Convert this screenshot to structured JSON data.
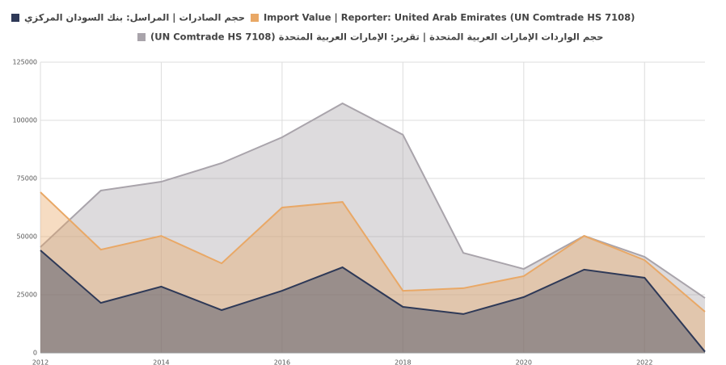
{
  "chart_data": {
    "type": "area",
    "x": [
      2012,
      2013,
      2014,
      2015,
      2016,
      2017,
      2018,
      2019,
      2020,
      2021,
      2022,
      2023
    ],
    "xticks": [
      2012,
      2014,
      2016,
      2018,
      2020,
      2022
    ],
    "series": [
      {
        "name": "(UN Comtrade HS 7108) حجم الواردات الإمارات العربية المتحدة | تقرير: الإمارات العربية المتحدة",
        "color": "#a9a4ab",
        "values": [
          45500,
          69800,
          73600,
          81600,
          92700,
          107300,
          93800,
          43000,
          36100,
          50300,
          41300,
          23600
        ]
      },
      {
        "name": "Import Value | Reporter: United Arab Emirates (UN Comtrade HS 7108)",
        "color": "#e9a866",
        "values": [
          69100,
          44400,
          50300,
          38500,
          62500,
          64900,
          26700,
          27800,
          33000,
          50300,
          39900,
          17700
        ]
      },
      {
        "name": "حجم الصادرات | المراسل: بنك السودان المركزي",
        "color": "#2e3957",
        "values": [
          44100,
          21500,
          28500,
          18400,
          26700,
          36800,
          19800,
          16700,
          24000,
          35800,
          32300,
          500
        ]
      }
    ],
    "ylim": [
      0,
      125000
    ],
    "yticks": [
      0,
      25000,
      50000,
      75000,
      100000,
      125000
    ],
    "grid": true
  }
}
